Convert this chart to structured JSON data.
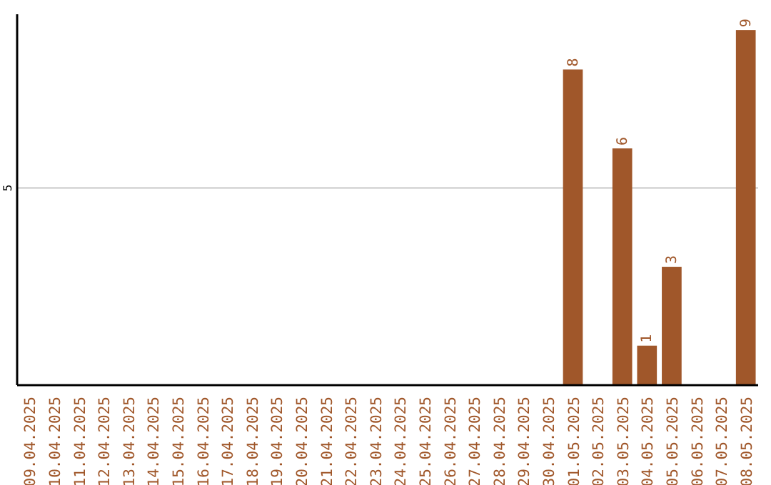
{
  "chart_data": {
    "type": "bar",
    "categories": [
      "09.04.2025",
      "10.04.2025",
      "11.04.2025",
      "12.04.2025",
      "13.04.2025",
      "14.04.2025",
      "15.04.2025",
      "16.04.2025",
      "17.04.2025",
      "18.04.2025",
      "19.04.2025",
      "20.04.2025",
      "21.04.2025",
      "22.04.2025",
      "23.04.2025",
      "24.04.2025",
      "25.04.2025",
      "26.04.2025",
      "27.04.2025",
      "28.04.2025",
      "29.04.2025",
      "30.04.2025",
      "01.05.2025",
      "02.05.2025",
      "03.05.2025",
      "04.05.2025",
      "05.05.2025",
      "06.05.2025",
      "07.05.2025",
      "08.05.2025"
    ],
    "values": [
      null,
      null,
      null,
      null,
      null,
      null,
      null,
      null,
      null,
      null,
      null,
      null,
      null,
      null,
      null,
      null,
      null,
      null,
      null,
      null,
      null,
      null,
      8,
      null,
      6,
      1,
      3,
      null,
      null,
      9
    ],
    "color": "#a0572a",
    "ylim": [
      0,
      9.4
    ],
    "yticks": [
      5
    ],
    "grid": "y",
    "data_labels": true
  }
}
